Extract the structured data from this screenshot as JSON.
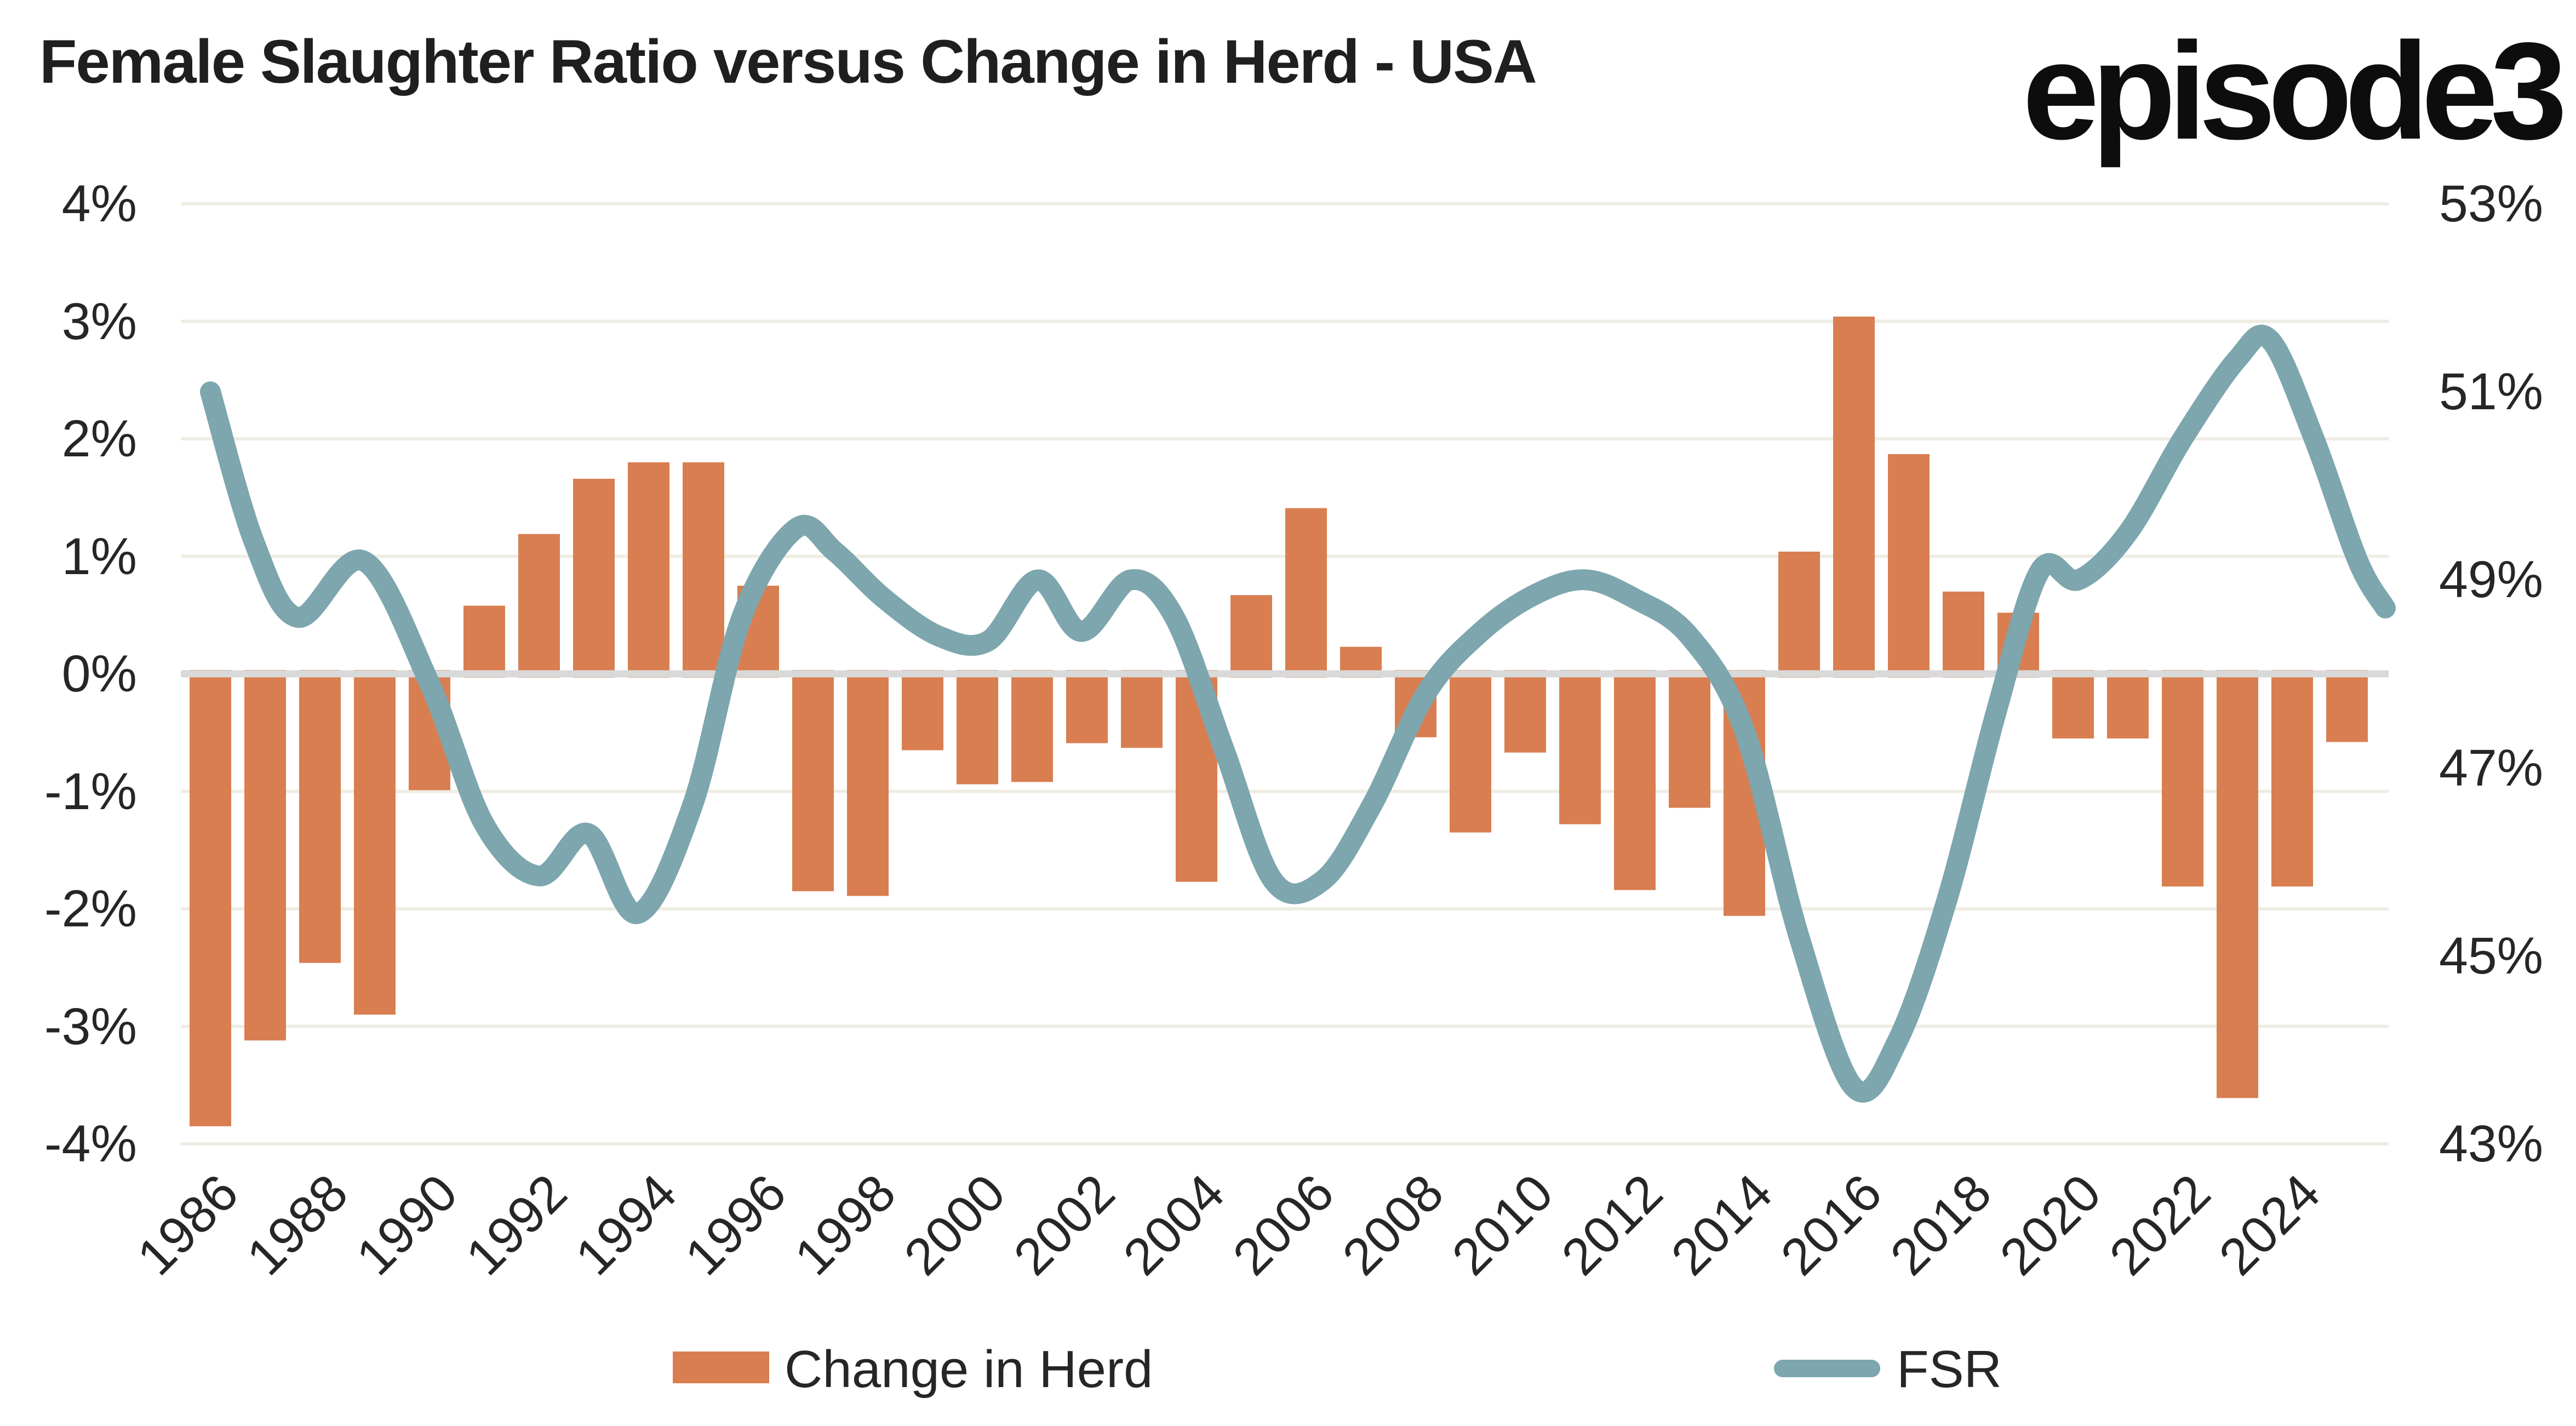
{
  "header": {
    "title": "Female Slaughter Ratio versus Change in Herd - USA",
    "logo_text": "episode3"
  },
  "legend": {
    "bars_label": "Change in Herd",
    "line_label": "FSR"
  },
  "colors": {
    "bar": "#D97E50",
    "line": "#7DA6AE",
    "gridline": "#EFEDE3",
    "zero_line": "#D9D9D9",
    "text": "#262626"
  },
  "chart_data": {
    "type": "bar",
    "title": "Female Slaughter Ratio versus Change in Herd - USA",
    "grid": "horizontal",
    "legend_position": "bottom",
    "categories": [
      1986,
      1987,
      1988,
      1989,
      1990,
      1991,
      1992,
      1993,
      1994,
      1995,
      1996,
      1997,
      1998,
      1999,
      2000,
      2001,
      2002,
      2003,
      2004,
      2005,
      2006,
      2007,
      2008,
      2009,
      2010,
      2011,
      2012,
      2013,
      2014,
      2015,
      2016,
      2017,
      2018,
      2019,
      2020,
      2021,
      2022,
      2023,
      2024,
      2025
    ],
    "series": [
      {
        "name": "Change in Herd",
        "type": "bar",
        "axis": "left",
        "unit": "%",
        "values": [
          -3.85,
          -3.12,
          -2.46,
          -2.9,
          -0.99,
          0.58,
          1.19,
          1.66,
          1.8,
          1.8,
          0.75,
          -1.85,
          -1.89,
          -0.65,
          -0.94,
          -0.92,
          -0.59,
          -0.63,
          -1.77,
          0.67,
          1.41,
          0.23,
          -0.54,
          -1.35,
          -0.67,
          -1.28,
          -1.84,
          -1.14,
          -2.06,
          1.04,
          3.04,
          1.87,
          0.7,
          0.52,
          -0.55,
          -0.55,
          -1.81,
          -3.61,
          -1.81,
          -0.58
        ]
      },
      {
        "name": "FSR",
        "type": "line",
        "axis": "right",
        "unit": "%",
        "points": [
          [
            1986.0,
            51.0
          ],
          [
            1986.8,
            49.4
          ],
          [
            1987.6,
            48.6
          ],
          [
            1988.8,
            49.2
          ],
          [
            1990.0,
            47.9
          ],
          [
            1991.0,
            46.4
          ],
          [
            1992.0,
            45.85
          ],
          [
            1992.9,
            46.3
          ],
          [
            1993.8,
            45.45
          ],
          [
            1994.8,
            46.6
          ],
          [
            1995.7,
            48.6
          ],
          [
            1996.7,
            49.55
          ],
          [
            1997.4,
            49.3
          ],
          [
            1998.3,
            48.8
          ],
          [
            1999.3,
            48.4
          ],
          [
            2000.2,
            48.35
          ],
          [
            2001.1,
            49.0
          ],
          [
            2001.9,
            48.45
          ],
          [
            2002.8,
            49.0
          ],
          [
            2003.6,
            48.6
          ],
          [
            2004.5,
            47.2
          ],
          [
            2005.4,
            45.8
          ],
          [
            2006.3,
            45.8
          ],
          [
            2007.2,
            46.6
          ],
          [
            2008.2,
            47.8
          ],
          [
            2009.2,
            48.45
          ],
          [
            2010.2,
            48.85
          ],
          [
            2011.1,
            49.0
          ],
          [
            2012.0,
            48.8
          ],
          [
            2013.0,
            48.4
          ],
          [
            2014.0,
            47.4
          ],
          [
            2015.0,
            45.2
          ],
          [
            2016.0,
            43.6
          ],
          [
            2016.8,
            44.1
          ],
          [
            2017.7,
            45.6
          ],
          [
            2018.6,
            47.6
          ],
          [
            2019.4,
            49.1
          ],
          [
            2020.1,
            49.0
          ],
          [
            2021.0,
            49.5
          ],
          [
            2022.0,
            50.5
          ],
          [
            2023.0,
            51.35
          ],
          [
            2023.6,
            51.55
          ],
          [
            2024.4,
            50.5
          ],
          [
            2025.2,
            49.2
          ],
          [
            2025.7,
            48.7
          ]
        ]
      }
    ],
    "left_axis": {
      "label": "",
      "ticks": [
        "4%",
        "3%",
        "2%",
        "1%",
        "0%",
        "-1%",
        "-2%",
        "-3%",
        "-4%"
      ],
      "range": [
        -4,
        4
      ]
    },
    "right_axis": {
      "label": "",
      "ticks": [
        "53%",
        "51%",
        "49%",
        "47%",
        "45%",
        "43%"
      ],
      "range": [
        43,
        53
      ]
    },
    "x_axis": {
      "ticks": [
        "1986",
        "1988",
        "1990",
        "1992",
        "1994",
        "1996",
        "1998",
        "2000",
        "2002",
        "2004",
        "2006",
        "2008",
        "2010",
        "2012",
        "2014",
        "2016",
        "2018",
        "2020",
        "2022",
        "2024"
      ]
    }
  }
}
